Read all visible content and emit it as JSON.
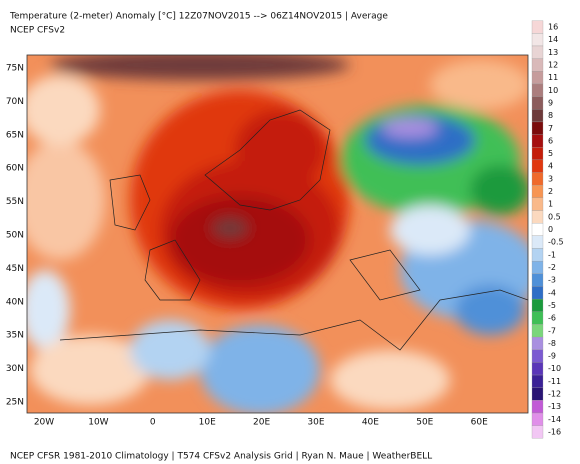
{
  "header": {
    "title": "Temperature (2-meter) Anomaly  [°C] 12Z07NOV2015 --> 06Z14NOV2015 | Average",
    "subtitle": "NCEP CFSv2"
  },
  "map": {
    "latitudes": [
      "75N",
      "70N",
      "65N",
      "60N",
      "55N",
      "50N",
      "45N",
      "40N",
      "35N",
      "30N",
      "25N"
    ],
    "longitudes": [
      "20W",
      "10W",
      "0",
      "10E",
      "20E",
      "30E",
      "40E",
      "50E",
      "60E"
    ]
  },
  "colorbar": {
    "labels": [
      16,
      14,
      13,
      12,
      11,
      10,
      9,
      8,
      7,
      6,
      5,
      4,
      3,
      2,
      1,
      0.5,
      0,
      -0.5,
      -1,
      -2,
      -3,
      -4,
      -5,
      -6,
      -7,
      -8,
      -9,
      -10,
      -11,
      -12,
      -13,
      -14,
      -16
    ],
    "colors": [
      "#f6d7d7",
      "#f2e6e6",
      "#e8d4d4",
      "#d9b9b9",
      "#c69c9c",
      "#ab7d7d",
      "#8c5c5c",
      "#6e3a3a",
      "#7a0c0c",
      "#a50f0f",
      "#c41d0a",
      "#e0380f",
      "#ef6a2c",
      "#f79553",
      "#f9b98a",
      "#fbd9bf",
      "#ffffff",
      "#dbe9f8",
      "#b3d3f2",
      "#7fb3e8",
      "#4f90d8",
      "#2f6ec6",
      "#1a9a3c",
      "#3fbf56",
      "#7ad67b",
      "#a98fe0",
      "#7b5ad1",
      "#5a36b8",
      "#3b2196",
      "#2a1474",
      "#c15ad6",
      "#e08fe9",
      "#f2c7f4"
    ]
  },
  "footer": "NCEP CFSR 1981-2010 Climatology | T574 CFSv2 Analysis Grid | Ryan N. Maue | WeatherBELL"
}
